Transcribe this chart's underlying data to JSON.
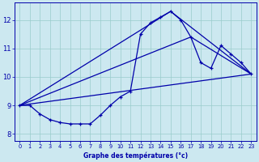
{
  "xlabel": "Graphe des températures (°c)",
  "ylabel": "",
  "background_color": "#cce8f0",
  "line_color": "#0000aa",
  "grid_color": "#99cccc",
  "xlim": [
    -0.5,
    23.5
  ],
  "ylim": [
    7.75,
    12.6
  ],
  "yticks": [
    8,
    9,
    10,
    11,
    12
  ],
  "xticks": [
    0,
    1,
    2,
    3,
    4,
    5,
    6,
    7,
    8,
    9,
    10,
    11,
    12,
    13,
    14,
    15,
    16,
    17,
    18,
    19,
    20,
    21,
    22,
    23
  ],
  "line1_x": [
    0,
    1,
    2,
    3,
    4,
    5,
    6,
    7,
    8,
    9,
    10,
    11,
    12,
    13,
    14,
    15,
    16,
    17,
    18,
    19,
    20,
    21,
    22,
    23
  ],
  "line1_y": [
    9.0,
    9.0,
    8.7,
    8.5,
    8.4,
    8.35,
    8.35,
    8.35,
    8.65,
    9.0,
    9.3,
    9.5,
    11.5,
    11.9,
    12.1,
    12.3,
    12.0,
    11.4,
    10.5,
    10.3,
    11.1,
    10.8,
    10.5,
    10.1
  ],
  "line2_x": [
    0,
    23
  ],
  "line2_y": [
    9.0,
    10.1
  ],
  "line3_x": [
    0,
    15,
    23
  ],
  "line3_y": [
    9.0,
    12.3,
    10.1
  ],
  "line4_x": [
    0,
    17,
    23
  ],
  "line4_y": [
    9.0,
    11.4,
    10.1
  ]
}
